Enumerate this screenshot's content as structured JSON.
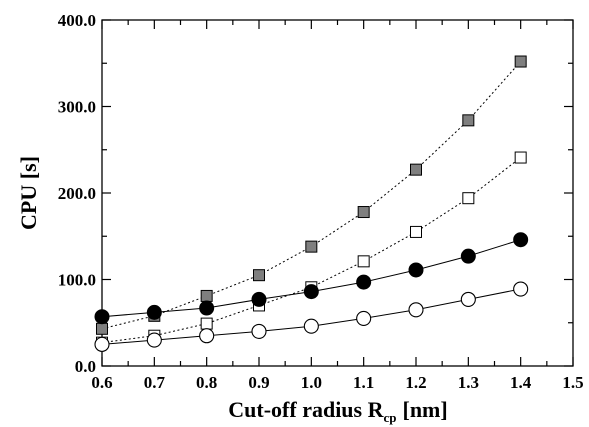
{
  "chart_data": {
    "type": "line",
    "title": "",
    "xlabel": "Cut-off radius R",
    "xlabel_subscript": "cp",
    "xlabel_unit": "[nm]",
    "ylabel": "CPU [s]",
    "xlim": [
      0.6,
      1.5
    ],
    "ylim": [
      0,
      400
    ],
    "grid": false,
    "x_ticks": [
      0.6,
      0.7,
      0.8,
      0.9,
      1.0,
      1.1,
      1.2,
      1.3,
      1.4,
      1.5
    ],
    "x_tick_labels": [
      "0.6",
      "0.7",
      "0.8",
      "0.9",
      "1.0",
      "1.1",
      "1.2",
      "1.3",
      "1.4",
      "1.5"
    ],
    "y_ticks": [
      0,
      100,
      200,
      300,
      400
    ],
    "y_tick_labels": [
      "0.0",
      "100.0",
      "200.0",
      "300.0",
      "400.0"
    ],
    "x": [
      0.6,
      0.7,
      0.8,
      0.9,
      1.0,
      1.1,
      1.2,
      1.3,
      1.4
    ],
    "series": [
      {
        "marker": "square-filled-gray",
        "line_style": "dotted",
        "values": [
          43,
          58,
          81,
          105,
          138,
          178,
          227,
          284,
          352
        ]
      },
      {
        "marker": "square-open",
        "line_style": "dotted",
        "values": [
          27,
          35,
          49,
          70,
          91,
          121,
          155,
          194,
          241
        ]
      },
      {
        "marker": "circle-filled",
        "line_style": "solid",
        "values": [
          57,
          62,
          67,
          77,
          86,
          97,
          111,
          127,
          146
        ]
      },
      {
        "marker": "circle-open",
        "line_style": "solid",
        "values": [
          25,
          30,
          35,
          40,
          46,
          55,
          65,
          77,
          89
        ]
      }
    ],
    "colors": {
      "axis": "#000000",
      "gray_fill": "#7f7f7f",
      "open_fill": "#ffffff",
      "filled": "#000000"
    }
  }
}
